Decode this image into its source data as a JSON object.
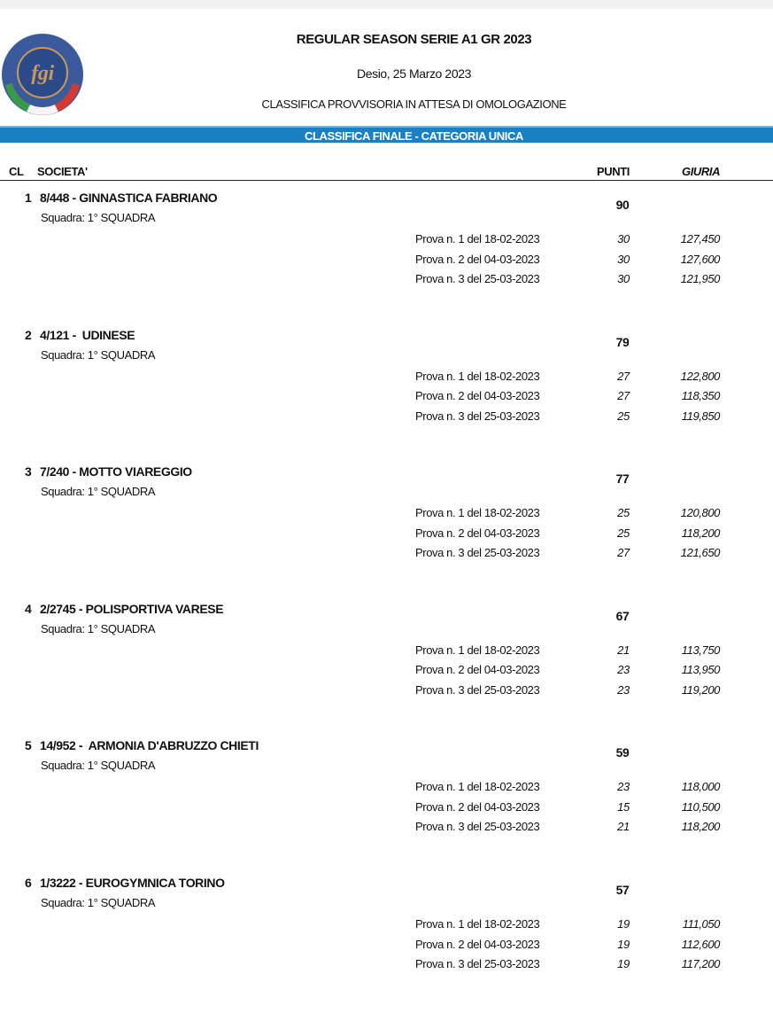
{
  "header": {
    "title": "REGULAR SEASON SERIE A1 GR 2023",
    "place_date": "Desio, 25 Marzo 2023",
    "status": "CLASSIFICA PROVVISORIA IN ATTESA DI OMOLOGAZIONE",
    "band": "CLASSIFICA FINALE - CATEGORIA UNICA",
    "logo_text": "FEDERAZIONE GINNASTICA D'ITALIA fgi"
  },
  "columns": {
    "cl": "CL",
    "societa": "SOCIETA'",
    "punti": "PUNTI",
    "giuria": "GIURIA"
  },
  "colors": {
    "band": "#1b80c2",
    "logo_blue": "#2c4a8a",
    "logo_gold": "#c79a5a"
  },
  "teams": [
    {
      "rank": "1",
      "name": "8/448 - GINNASTICA FABRIANO",
      "squadra": "Squadra: 1° SQUADRA",
      "total": "90",
      "prove": [
        {
          "label": "Prova n. 1 del 18-02-2023",
          "punti": "30",
          "giuria": "127,450"
        },
        {
          "label": "Prova n. 2 del 04-03-2023",
          "punti": "30",
          "giuria": "127,600"
        },
        {
          "label": "Prova n. 3 del 25-03-2023",
          "punti": "30",
          "giuria": "121,950"
        }
      ]
    },
    {
      "rank": "2",
      "name": "4/121 -  UDINESE",
      "squadra": "Squadra: 1° SQUADRA",
      "total": "79",
      "prove": [
        {
          "label": "Prova n. 1 del 18-02-2023",
          "punti": "27",
          "giuria": "122,800"
        },
        {
          "label": "Prova n. 2 del 04-03-2023",
          "punti": "27",
          "giuria": "118,350"
        },
        {
          "label": "Prova n. 3 del 25-03-2023",
          "punti": "25",
          "giuria": "119,850"
        }
      ]
    },
    {
      "rank": "3",
      "name": "7/240 - MOTTO VIAREGGIO",
      "squadra": "Squadra: 1° SQUADRA",
      "total": "77",
      "prove": [
        {
          "label": "Prova n. 1 del 18-02-2023",
          "punti": "25",
          "giuria": "120,800"
        },
        {
          "label": "Prova n. 2 del 04-03-2023",
          "punti": "25",
          "giuria": "118,200"
        },
        {
          "label": "Prova n. 3 del 25-03-2023",
          "punti": "27",
          "giuria": "121,650"
        }
      ]
    },
    {
      "rank": "4",
      "name": "2/2745 - POLISPORTIVA VARESE",
      "squadra": "Squadra: 1° SQUADRA",
      "total": "67",
      "prove": [
        {
          "label": "Prova n. 1 del 18-02-2023",
          "punti": "21",
          "giuria": "113,750"
        },
        {
          "label": "Prova n. 2 del 04-03-2023",
          "punti": "23",
          "giuria": "113,950"
        },
        {
          "label": "Prova n. 3 del 25-03-2023",
          "punti": "23",
          "giuria": "119,200"
        }
      ]
    },
    {
      "rank": "5",
      "name": "14/952 -  ARMONIA D'ABRUZZO CHIETI",
      "squadra": "Squadra: 1° SQUADRA",
      "total": "59",
      "prove": [
        {
          "label": "Prova n. 1 del 18-02-2023",
          "punti": "23",
          "giuria": "118,000"
        },
        {
          "label": "Prova n. 2 del 04-03-2023",
          "punti": "15",
          "giuria": "110,500"
        },
        {
          "label": "Prova n. 3 del 25-03-2023",
          "punti": "21",
          "giuria": "118,200"
        }
      ]
    },
    {
      "rank": "6",
      "name": "1/3222 - EUROGYMNICA TORINO",
      "squadra": "Squadra: 1° SQUADRA",
      "total": "57",
      "prove": [
        {
          "label": "Prova n. 1 del 18-02-2023",
          "punti": "19",
          "giuria": "111,050"
        },
        {
          "label": "Prova n. 2 del 04-03-2023",
          "punti": "19",
          "giuria": "112,600"
        },
        {
          "label": "Prova n. 3 del 25-03-2023",
          "punti": "19",
          "giuria": "117,200"
        }
      ]
    }
  ]
}
